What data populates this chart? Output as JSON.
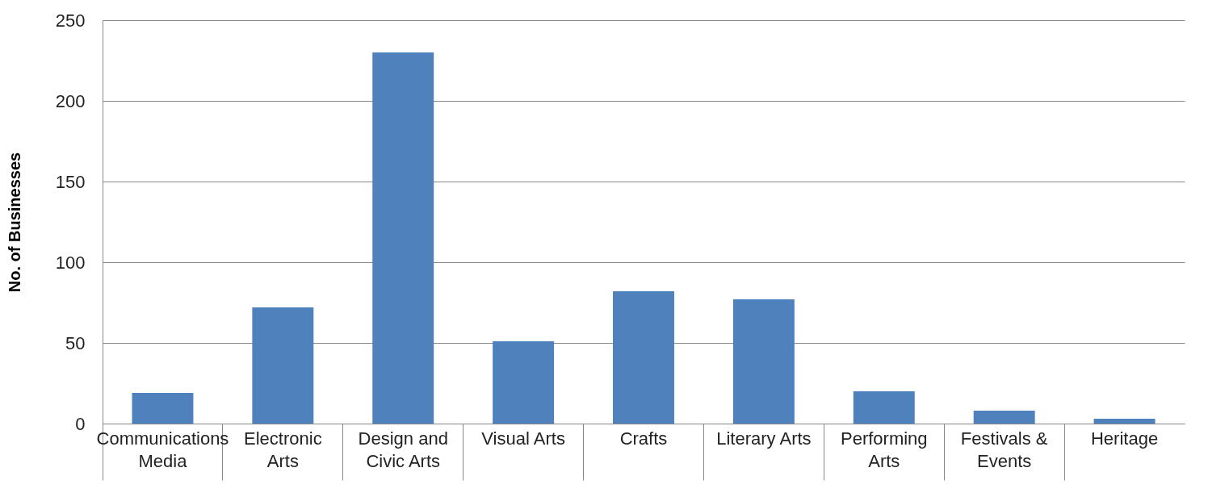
{
  "chart_data": {
    "type": "bar",
    "ylabel": "No. of Businesses",
    "categories": [
      "Communications Media",
      "Electronic Arts",
      "Design and Civic Arts",
      "Visual Arts",
      "Crafts",
      "Literary Arts",
      "Performing Arts",
      "Festivals & Events",
      "Heritage"
    ],
    "values": [
      19,
      72,
      230,
      51,
      82,
      77,
      20,
      8,
      3
    ],
    "color": "#4f81bd",
    "ylim": [
      0,
      250
    ],
    "yticks": [
      0,
      50,
      100,
      150,
      200,
      250
    ],
    "grid": "y"
  }
}
